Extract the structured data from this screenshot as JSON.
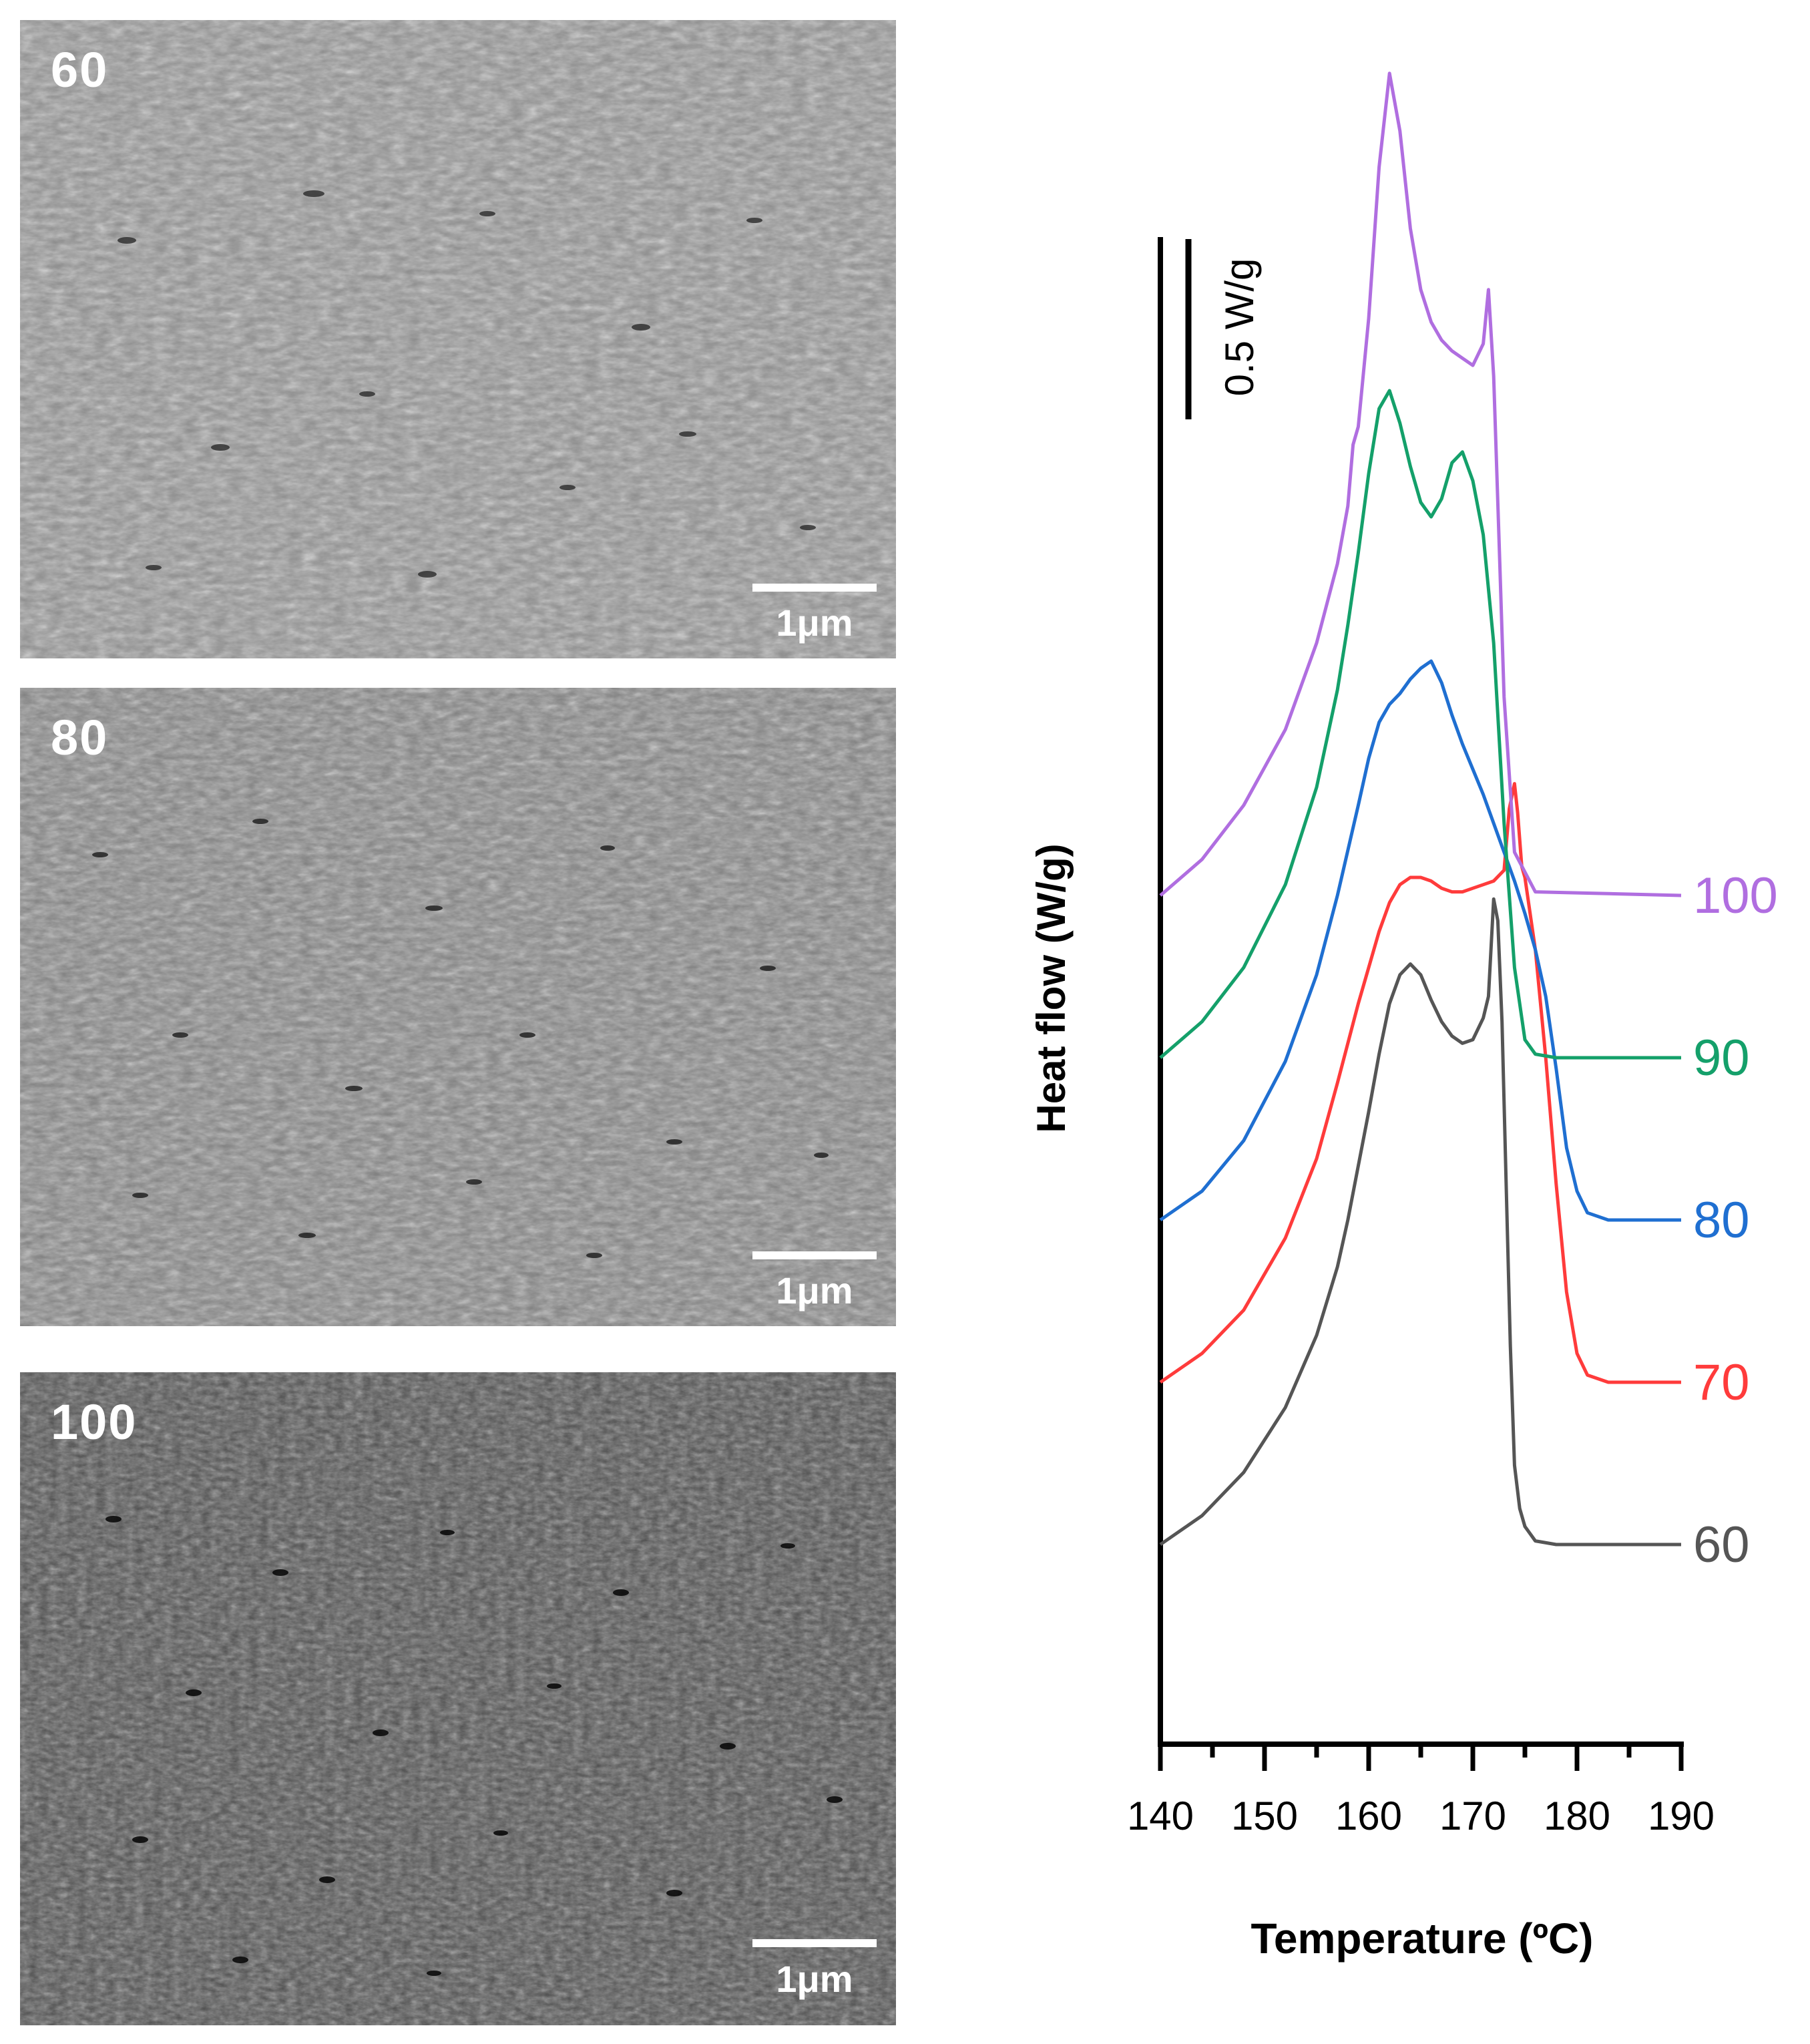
{
  "sem_panels": [
    {
      "label": "60",
      "scale_text": "1μm",
      "tone": "#8a8a8a"
    },
    {
      "label": "80",
      "scale_text": "1μm",
      "tone": "#7d7d7d"
    },
    {
      "label": "100",
      "scale_text": "1μm",
      "tone": "#4e4e4e"
    }
  ],
  "chart_data": {
    "type": "line",
    "title": "",
    "xlabel": "Temperature (ºC)",
    "ylabel": "Heat flow (W/g)",
    "xlim": [
      140,
      190
    ],
    "xticks": [
      "140",
      "150",
      "160",
      "170",
      "180",
      "190"
    ],
    "scale_bar_label": "0.5 W/g",
    "scale_bar_value_Wg": 0.5,
    "y_offset_note": "curves stacked vertically, offset",
    "series": [
      {
        "name": "60",
        "color": "#555555",
        "baseline": 0.0,
        "x": [
          140,
          144,
          148,
          152,
          155,
          157,
          158,
          160,
          161,
          162,
          163,
          164,
          165,
          166,
          167,
          168,
          169,
          170,
          171,
          171.5,
          172,
          172.4,
          172.8,
          173.2,
          173.6,
          174,
          174.5,
          175,
          176,
          178,
          190
        ],
        "y": [
          0.3,
          0.38,
          0.5,
          0.68,
          0.88,
          1.07,
          1.2,
          1.5,
          1.66,
          1.8,
          1.88,
          1.91,
          1.88,
          1.81,
          1.75,
          1.71,
          1.69,
          1.7,
          1.76,
          1.82,
          2.09,
          2.03,
          1.75,
          1.3,
          0.85,
          0.52,
          0.4,
          0.35,
          0.31,
          0.3,
          0.3
        ]
      },
      {
        "name": "70",
        "color": "#ff3b3b",
        "baseline": 0.45,
        "x": [
          140,
          144,
          148,
          152,
          155,
          157,
          159,
          161,
          162,
          163,
          164,
          165,
          166,
          167,
          168,
          169,
          170,
          171,
          172,
          173,
          173.5,
          174,
          174.3,
          174.7,
          175,
          176,
          177,
          178,
          179,
          180,
          181,
          183,
          190
        ],
        "y": [
          0.3,
          0.38,
          0.5,
          0.7,
          0.92,
          1.13,
          1.35,
          1.55,
          1.63,
          1.68,
          1.7,
          1.7,
          1.69,
          1.67,
          1.66,
          1.66,
          1.67,
          1.68,
          1.69,
          1.72,
          1.89,
          1.96,
          1.88,
          1.73,
          1.7,
          1.5,
          1.2,
          0.85,
          0.55,
          0.38,
          0.32,
          0.3,
          0.3
        ]
      },
      {
        "name": "80",
        "color": "#1f6fd1",
        "baseline": 0.9,
        "x": [
          140,
          144,
          148,
          152,
          155,
          157,
          159,
          160,
          161,
          162,
          163,
          164,
          165,
          166,
          167,
          168,
          169,
          170,
          171,
          172,
          173,
          174,
          175,
          176,
          177,
          178,
          179,
          180,
          181,
          183,
          190
        ],
        "y": [
          0.3,
          0.38,
          0.52,
          0.74,
          0.98,
          1.2,
          1.45,
          1.58,
          1.68,
          1.73,
          1.76,
          1.8,
          1.83,
          1.85,
          1.79,
          1.7,
          1.62,
          1.55,
          1.48,
          1.4,
          1.32,
          1.24,
          1.15,
          1.05,
          0.92,
          0.72,
          0.5,
          0.38,
          0.32,
          0.3,
          0.3
        ]
      },
      {
        "name": "90",
        "color": "#14a06a",
        "baseline": 1.35,
        "x": [
          140,
          144,
          148,
          152,
          155,
          157,
          158,
          159,
          160,
          161,
          162,
          163,
          164,
          165,
          166,
          167,
          168,
          169,
          170,
          171,
          172,
          173,
          174,
          175,
          176,
          178,
          190
        ],
        "y": [
          0.3,
          0.4,
          0.55,
          0.78,
          1.05,
          1.32,
          1.5,
          1.7,
          1.92,
          2.1,
          2.15,
          2.06,
          1.94,
          1.84,
          1.8,
          1.85,
          1.95,
          1.98,
          1.9,
          1.75,
          1.45,
          0.95,
          0.55,
          0.35,
          0.31,
          0.3,
          0.3
        ]
      },
      {
        "name": "100",
        "color": "#b06ee0",
        "baseline": 1.8,
        "x": [
          140,
          144,
          148,
          152,
          155,
          157,
          158,
          158.5,
          159,
          160,
          161,
          162,
          163,
          164,
          165,
          166,
          167,
          168,
          169,
          170,
          171,
          171.5,
          172,
          172.5,
          173,
          174,
          176,
          190
        ],
        "y": [
          0.3,
          0.4,
          0.55,
          0.76,
          1.0,
          1.22,
          1.38,
          1.55,
          1.6,
          1.9,
          2.32,
          2.58,
          2.42,
          2.15,
          1.98,
          1.89,
          1.84,
          1.81,
          1.79,
          1.77,
          1.83,
          1.98,
          1.74,
          1.3,
          0.85,
          0.42,
          0.31,
          0.3
        ]
      }
    ]
  }
}
